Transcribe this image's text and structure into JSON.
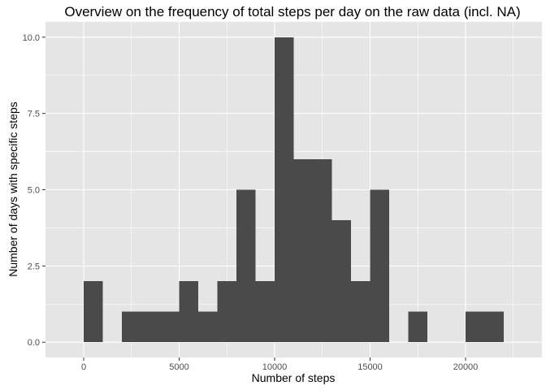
{
  "chart_data": {
    "type": "bar",
    "title": "Overview on the frequency of total steps per day on the raw data (incl. NA)",
    "xlabel": "Number of steps",
    "ylabel": "Number of days with specific steps",
    "xlim": [
      -2000,
      24000
    ],
    "ylim": [
      -0.5,
      10.5
    ],
    "bin_width": 1000,
    "bins": [
      {
        "start": 0,
        "end": 1000,
        "count": 2
      },
      {
        "start": 2000,
        "end": 3000,
        "count": 1
      },
      {
        "start": 3000,
        "end": 4000,
        "count": 1
      },
      {
        "start": 4000,
        "end": 5000,
        "count": 1
      },
      {
        "start": 5000,
        "end": 6000,
        "count": 2
      },
      {
        "start": 6000,
        "end": 7000,
        "count": 1
      },
      {
        "start": 7000,
        "end": 8000,
        "count": 2
      },
      {
        "start": 8000,
        "end": 9000,
        "count": 5
      },
      {
        "start": 9000,
        "end": 10000,
        "count": 2
      },
      {
        "start": 10000,
        "end": 11000,
        "count": 10
      },
      {
        "start": 11000,
        "end": 12000,
        "count": 6
      },
      {
        "start": 12000,
        "end": 13000,
        "count": 6
      },
      {
        "start": 13000,
        "end": 14000,
        "count": 4
      },
      {
        "start": 14000,
        "end": 15000,
        "count": 2
      },
      {
        "start": 15000,
        "end": 16000,
        "count": 5
      },
      {
        "start": 17000,
        "end": 18000,
        "count": 1
      },
      {
        "start": 20000,
        "end": 21000,
        "count": 1
      },
      {
        "start": 21000,
        "end": 22000,
        "count": 1
      }
    ],
    "x_ticks": [
      0,
      5000,
      10000,
      15000,
      20000
    ],
    "x_tick_labels": [
      "0",
      "5000",
      "10000",
      "15000",
      "20000"
    ],
    "y_ticks": [
      0,
      2.5,
      5,
      7.5,
      10
    ],
    "y_tick_labels": [
      "0.0",
      "2.5",
      "5.0",
      "7.5",
      "10.0"
    ],
    "grid": true,
    "colors": {
      "panel_background": "#e5e5e5",
      "grid_major": "#ffffff",
      "bar_fill": "#4a4a4a",
      "tick_color": "#333333"
    }
  }
}
